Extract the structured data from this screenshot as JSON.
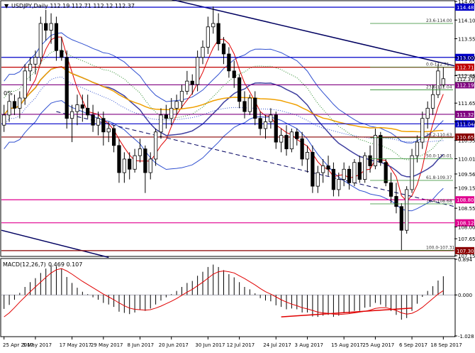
{
  "chart_data": [
    {
      "type": "candlestick",
      "symbol": "USDJPY",
      "timeframe": "Daily",
      "ohlc_label": "112.19 112.71 112.12 112.37",
      "header": "USDJPY,Daily  112.19 112.71 112.12 112.37",
      "ylim": [
        107.15,
        114.65
      ],
      "y_ticks": [
        114.65,
        114.1,
        113.55,
        113.0,
        112.46,
        111.65,
        111.1,
        110.55,
        110.01,
        109.56,
        109.15,
        108.55,
        108.0,
        107.65,
        107.15
      ],
      "x_tick_labels": [
        "25 Apr 2017",
        "5 May 2017",
        "17 May 2017",
        "29 May 2017",
        "8 Jun 2017",
        "20 Jun 2017",
        "30 Jun 2017",
        "12 Jul 2017",
        "24 Jul 2017",
        "3 Aug 2017",
        "15 Aug 2017",
        "25 Aug 2017",
        "6 Sep 2017",
        "18 Sep 2017"
      ],
      "candles": [
        [
          111.0,
          111.6,
          110.8,
          111.3
        ],
        [
          111.3,
          111.9,
          111.1,
          111.7
        ],
        [
          111.7,
          111.9,
          111.3,
          111.5
        ],
        [
          111.5,
          112.0,
          111.2,
          111.8
        ],
        [
          111.8,
          112.8,
          111.6,
          112.6
        ],
        [
          112.6,
          113.0,
          112.3,
          112.8
        ],
        [
          112.8,
          113.2,
          112.5,
          113.0
        ],
        [
          113.0,
          114.2,
          112.8,
          114.0
        ],
        [
          114.0,
          114.4,
          113.5,
          113.8
        ],
        [
          113.8,
          114.3,
          113.4,
          114.0
        ],
        [
          114.0,
          114.2,
          112.9,
          113.2
        ],
        [
          113.2,
          113.6,
          112.9,
          113.0
        ],
        [
          113.0,
          113.2,
          110.9,
          111.2
        ],
        [
          111.2,
          111.6,
          110.5,
          111.4
        ],
        [
          111.4,
          111.9,
          111.0,
          111.6
        ],
        [
          111.6,
          111.9,
          111.1,
          111.5
        ],
        [
          111.5,
          111.9,
          111.2,
          111.3
        ],
        [
          111.3,
          111.6,
          110.8,
          111.0
        ],
        [
          111.0,
          111.4,
          110.7,
          111.2
        ],
        [
          111.2,
          111.4,
          110.4,
          110.8
        ],
        [
          110.8,
          111.1,
          110.5,
          110.9
        ],
        [
          110.9,
          111.0,
          110.2,
          110.4
        ],
        [
          110.4,
          110.6,
          109.3,
          109.6
        ],
        [
          109.6,
          110.2,
          109.3,
          110.0
        ],
        [
          110.0,
          110.2,
          109.4,
          109.7
        ],
        [
          109.7,
          110.3,
          109.6,
          110.1
        ],
        [
          110.1,
          110.6,
          109.9,
          110.3
        ],
        [
          110.3,
          110.4,
          109.0,
          109.6
        ],
        [
          109.6,
          110.2,
          109.4,
          110.0
        ],
        [
          110.0,
          110.9,
          109.8,
          110.8
        ],
        [
          110.8,
          111.5,
          110.6,
          111.3
        ],
        [
          111.3,
          111.6,
          110.9,
          111.2
        ],
        [
          111.2,
          111.8,
          111.0,
          111.5
        ],
        [
          111.5,
          111.9,
          111.3,
          111.7
        ],
        [
          111.7,
          112.2,
          111.5,
          112.0
        ],
        [
          112.0,
          112.6,
          111.9,
          112.3
        ],
        [
          112.3,
          112.5,
          111.9,
          112.2
        ],
        [
          112.2,
          113.2,
          112.0,
          113.0
        ],
        [
          113.0,
          113.5,
          112.8,
          113.3
        ],
        [
          113.3,
          114.2,
          113.1,
          113.9
        ],
        [
          113.9,
          114.5,
          113.7,
          114.0
        ],
        [
          114.0,
          114.3,
          113.2,
          113.4
        ],
        [
          113.4,
          113.6,
          112.8,
          113.1
        ],
        [
          113.1,
          113.3,
          112.4,
          112.6
        ],
        [
          112.6,
          112.9,
          112.1,
          112.4
        ],
        [
          112.4,
          112.5,
          111.5,
          111.7
        ],
        [
          111.7,
          112.0,
          111.2,
          111.4
        ],
        [
          111.4,
          111.9,
          111.3,
          111.8
        ],
        [
          111.8,
          112.0,
          111.0,
          111.2
        ],
        [
          111.2,
          111.4,
          110.7,
          110.9
        ],
        [
          110.9,
          111.3,
          110.6,
          111.1
        ],
        [
          111.1,
          111.5,
          110.9,
          111.3
        ],
        [
          111.3,
          111.4,
          110.3,
          110.5
        ],
        [
          110.5,
          110.9,
          110.2,
          110.7
        ],
        [
          110.7,
          111.0,
          110.1,
          110.3
        ],
        [
          110.3,
          110.9,
          110.2,
          110.8
        ],
        [
          110.8,
          110.9,
          110.4,
          110.6
        ],
        [
          110.6,
          110.8,
          109.8,
          110.0
        ],
        [
          110.0,
          110.4,
          109.6,
          110.2
        ],
        [
          110.2,
          110.4,
          109.0,
          109.2
        ],
        [
          109.2,
          109.8,
          109.0,
          109.6
        ],
        [
          109.6,
          110.0,
          109.3,
          109.8
        ],
        [
          109.8,
          110.1,
          109.5,
          109.7
        ],
        [
          109.7,
          109.9,
          108.9,
          109.1
        ],
        [
          109.1,
          109.6,
          108.9,
          109.4
        ],
        [
          109.4,
          109.9,
          109.2,
          109.7
        ],
        [
          109.7,
          109.8,
          109.1,
          109.3
        ],
        [
          109.3,
          110.0,
          109.2,
          109.9
        ],
        [
          109.9,
          110.1,
          109.3,
          109.4
        ],
        [
          109.4,
          110.2,
          109.3,
          110.1
        ],
        [
          110.1,
          110.4,
          109.6,
          109.8
        ],
        [
          109.8,
          110.9,
          109.7,
          110.7
        ],
        [
          110.7,
          110.8,
          109.8,
          109.9
        ],
        [
          109.9,
          110.0,
          109.2,
          109.3
        ],
        [
          109.3,
          109.6,
          108.7,
          108.9
        ],
        [
          108.9,
          109.3,
          108.4,
          108.6
        ],
        [
          108.6,
          108.7,
          107.3,
          107.9
        ],
        [
          107.9,
          109.2,
          107.8,
          109.1
        ],
        [
          109.1,
          110.3,
          109.0,
          110.1
        ],
        [
          110.1,
          110.7,
          109.9,
          110.5
        ],
        [
          110.5,
          111.4,
          110.3,
          111.2
        ],
        [
          111.2,
          111.7,
          110.9,
          111.5
        ],
        [
          111.5,
          112.2,
          111.3,
          111.9
        ],
        [
          111.9,
          112.8,
          111.8,
          112.6
        ],
        [
          112.19,
          112.71,
          112.12,
          112.37
        ]
      ],
      "price_lines": [
        {
          "label": "114.48",
          "value": 114.48,
          "color": "#0000c8",
          "label_bg": "#0000c8"
        },
        {
          "label": "113.00",
          "value": 113.0,
          "color": "#0000c8",
          "label_bg": "#0000c8"
        },
        {
          "label": "112.71",
          "value": 112.71,
          "color": "#c00000",
          "label_bg": "#c00000"
        },
        {
          "label": "112.19",
          "value": 112.19,
          "color": "#800080",
          "label_bg": "#800080"
        },
        {
          "label": "111.32",
          "value": 111.32,
          "color": "#800080",
          "label_bg": "#800080"
        },
        {
          "label": "111.04",
          "value": 111.04,
          "color": "#0000c8",
          "label_bg": "#0000c8"
        },
        {
          "label": "110.65",
          "value": 110.65,
          "color": "#8b0000",
          "label_bg": "#8b0000"
        },
        {
          "label": "108.80",
          "value": 108.8,
          "color": "#e0008f",
          "label_bg": "#e0008f"
        },
        {
          "label": "108.12",
          "value": 108.12,
          "color": "#e0008f",
          "label_bg": "#e0008f"
        },
        {
          "label": "107.30",
          "value": 107.3,
          "color": "#8b0000",
          "label_bg": "#8b0000"
        }
      ],
      "current_price": {
        "label": "112.37",
        "value": 112.37
      },
      "fib_levels": [
        {
          "label": "23.6-114.00",
          "value": 114.0
        },
        {
          "label": "0.0-112.71",
          "value": 112.71
        },
        {
          "label": "23.6-112.04",
          "value": 112.04
        },
        {
          "label": "38.2-110.63",
          "value": 110.63
        },
        {
          "label": "50.0-110.01",
          "value": 110.01
        },
        {
          "label": "61.8-109.37",
          "value": 109.37
        },
        {
          "label": "76.4-108.68",
          "value": 108.68
        },
        {
          "label": "100.0-107.31",
          "value": 107.31
        }
      ],
      "left_label": "0%"
    },
    {
      "type": "macd",
      "label": "MACD(12,26,7)",
      "values_label": "0.469 0.107",
      "ylim": [
        -1.028,
        0.894
      ],
      "y_ticks": [
        0.894,
        -0.0,
        -1.028
      ],
      "histogram": [
        -0.35,
        -0.25,
        -0.12,
        0.05,
        0.2,
        0.32,
        0.42,
        0.55,
        0.66,
        0.74,
        0.72,
        0.66,
        0.45,
        0.3,
        0.18,
        0.08,
        0.02,
        -0.06,
        -0.12,
        -0.2,
        -0.24,
        -0.3,
        -0.42,
        -0.45,
        -0.48,
        -0.44,
        -0.38,
        -0.4,
        -0.34,
        -0.24,
        -0.14,
        -0.06,
        0.02,
        0.1,
        0.2,
        0.3,
        0.35,
        0.48,
        0.58,
        0.7,
        0.76,
        0.7,
        0.62,
        0.52,
        0.44,
        0.32,
        0.2,
        0.14,
        0.04,
        -0.08,
        -0.14,
        -0.16,
        -0.26,
        -0.3,
        -0.36,
        -0.34,
        -0.36,
        -0.44,
        -0.44,
        -0.54,
        -0.55,
        -0.52,
        -0.5,
        -0.55,
        -0.52,
        -0.46,
        -0.46,
        -0.4,
        -0.4,
        -0.32,
        -0.3,
        -0.2,
        -0.24,
        -0.3,
        -0.4,
        -0.5,
        -0.62,
        -0.58,
        -0.4,
        -0.22,
        -0.05,
        0.1,
        0.22,
        0.36,
        0.469
      ],
      "signal": [
        -0.55,
        -0.45,
        -0.32,
        -0.18,
        -0.05,
        0.08,
        0.2,
        0.32,
        0.44,
        0.55,
        0.63,
        0.66,
        0.6,
        0.52,
        0.43,
        0.34,
        0.26,
        0.18,
        0.1,
        0.02,
        -0.05,
        -0.12,
        -0.2,
        -0.27,
        -0.33,
        -0.36,
        -0.37,
        -0.38,
        -0.37,
        -0.33,
        -0.28,
        -0.22,
        -0.16,
        -0.09,
        -0.01,
        0.07,
        0.14,
        0.23,
        0.32,
        0.42,
        0.52,
        0.58,
        0.6,
        0.58,
        0.55,
        0.48,
        0.41,
        0.33,
        0.25,
        0.16,
        0.08,
        0.02,
        -0.05,
        -0.12,
        -0.18,
        -0.23,
        -0.27,
        -0.32,
        -0.35,
        -0.39,
        -0.43,
        -0.45,
        -0.46,
        -0.48,
        -0.49,
        -0.48,
        -0.47,
        -0.45,
        -0.43,
        -0.41,
        -0.38,
        -0.34,
        -0.32,
        -0.32,
        -0.35,
        -0.39,
        -0.45,
        -0.48,
        -0.46,
        -0.4,
        -0.31,
        -0.2,
        -0.09,
        0.02,
        0.107
      ]
    }
  ]
}
